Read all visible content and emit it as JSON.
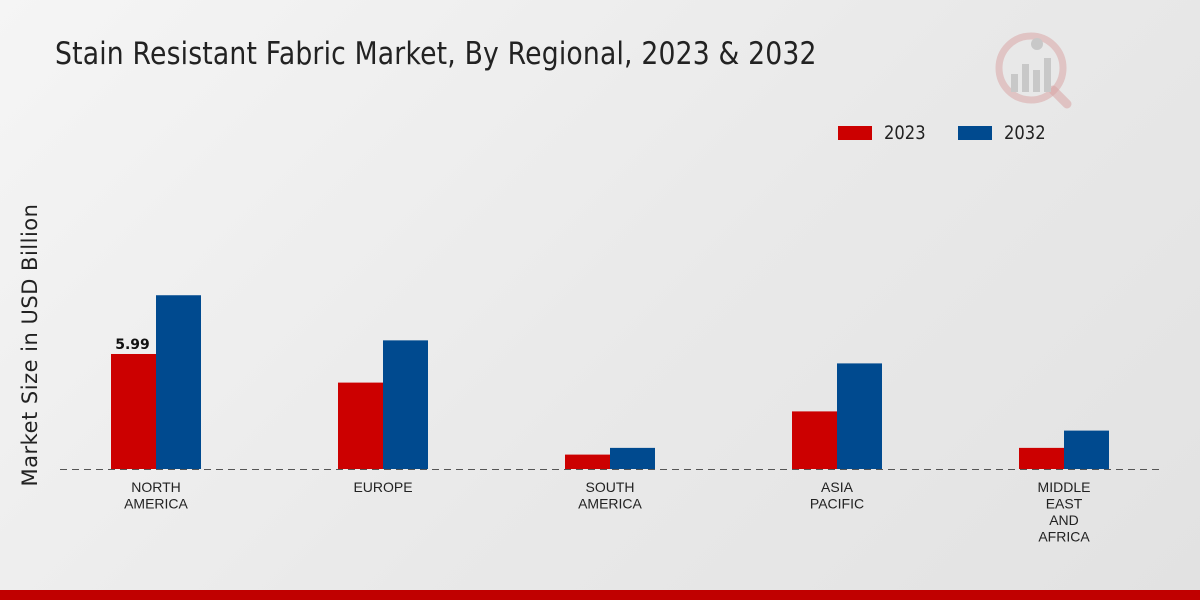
{
  "page": {
    "title": "Stain Resistant Fabric Market, By Regional, 2023 & 2032"
  },
  "chart_data": {
    "type": "bar",
    "title": "Stain Resistant Fabric Market, By Regional, 2023 & 2032",
    "xlabel": "",
    "ylabel": "Market Size in USD Billion",
    "categories": [
      [
        "NORTH",
        "AMERICA"
      ],
      [
        "EUROPE"
      ],
      [
        "SOUTH",
        "AMERICA"
      ],
      [
        "ASIA",
        "PACIFIC"
      ],
      [
        "MIDDLE",
        "EAST",
        "AND",
        "AFRICA"
      ]
    ],
    "series": [
      {
        "name": "2023",
        "color": "#cc0000",
        "values": [
          5.99,
          4.5,
          0.75,
          3.0,
          1.1
        ]
      },
      {
        "name": "2032",
        "color": "#004a8f",
        "values": [
          9.05,
          6.7,
          1.1,
          5.5,
          2.0
        ]
      }
    ],
    "data_labels": [
      {
        "series": 0,
        "category": 0,
        "text": "5.99"
      }
    ],
    "ylim": [
      0,
      14
    ],
    "grid": false,
    "legend": "top-right",
    "baseline_style": "dashed"
  }
}
